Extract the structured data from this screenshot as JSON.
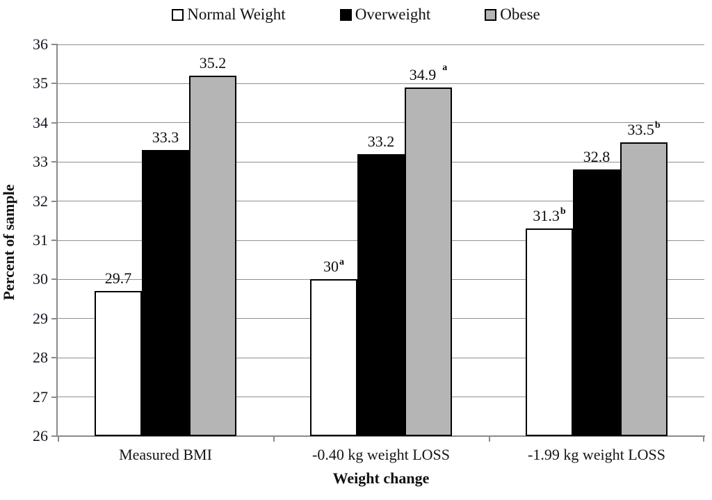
{
  "chart_data": {
    "type": "bar",
    "title": "",
    "xlabel": "Weight change",
    "ylabel": "Percent of sample",
    "ylim": [
      26,
      36
    ],
    "ytick_step": 1,
    "grid": true,
    "legend_position": "top",
    "categories": [
      "Measured BMI",
      "-0.40 kg weight LOSS",
      "-1.99 kg weight LOSS"
    ],
    "series": [
      {
        "name": "Normal Weight",
        "fill": "#ffffff",
        "values": [
          29.7,
          30,
          31.3
        ],
        "labels": [
          "29.7",
          "30",
          "31.3"
        ],
        "label_sups": [
          "",
          "a",
          "b"
        ]
      },
      {
        "name": "Overweight",
        "fill": "#000000",
        "values": [
          33.3,
          33.2,
          32.8
        ],
        "labels": [
          "33.3",
          "33.2",
          "32.8"
        ],
        "label_sups": [
          "",
          "",
          ""
        ]
      },
      {
        "name": "Obese",
        "fill": "#b5b5b5",
        "values": [
          35.2,
          34.9,
          33.5
        ],
        "labels": [
          "35.2",
          "34.9",
          "33.5"
        ],
        "label_sups": [
          "",
          " a",
          "b"
        ]
      }
    ]
  },
  "colors": {
    "gridline": "#909090",
    "axis": "#8a8a8a",
    "bar_border": "#000000",
    "text": "#111111"
  }
}
